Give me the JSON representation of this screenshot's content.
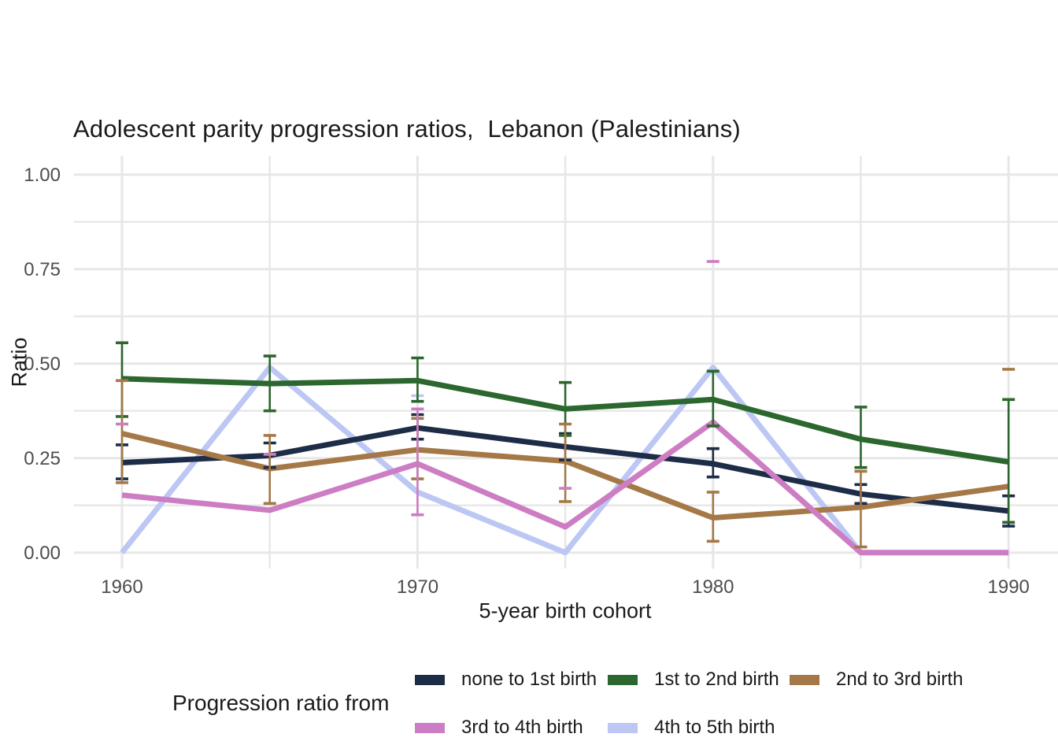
{
  "title": "Adolescent parity progression ratios,  Lebanon (Palestinians)",
  "chart_data": {
    "type": "line",
    "title": "Adolescent parity progression ratios,  Lebanon (Palestinians)",
    "xlabel": "5-year birth cohort",
    "ylabel": "Ratio",
    "x": [
      1960,
      1965,
      1970,
      1975,
      1980,
      1985,
      1990
    ],
    "x_ticks_major": [
      1960,
      1970,
      1980,
      1990
    ],
    "x_tick_labels": [
      "1960",
      "1970",
      "1980",
      "1990"
    ],
    "x_ticks_minor": [
      1965,
      1975,
      1985
    ],
    "ylim": [
      0,
      1
    ],
    "y_ticks_major": [
      0,
      0.25,
      0.5,
      0.75,
      1
    ],
    "y_tick_labels": [
      "0.00",
      "0.25",
      "0.50",
      "0.75",
      "1.00"
    ],
    "y_ticks_minor": [
      0.125,
      0.375,
      0.625,
      0.875
    ],
    "grid": true,
    "legend_position": "bottom",
    "error_bars": true,
    "series": [
      {
        "name": "none to 1st birth",
        "color": "#1d2c47",
        "values": [
          0.238,
          0.257,
          0.33,
          0.28,
          0.235,
          0.155,
          0.11
        ],
        "ci_low": [
          0.195,
          0.225,
          0.3,
          0.245,
          0.2,
          0.13,
          0.07
        ],
        "ci_high": [
          0.285,
          0.29,
          0.365,
          0.315,
          0.275,
          0.18,
          0.15
        ]
      },
      {
        "name": "1st to 2nd birth",
        "color": "#2c672f",
        "values": [
          0.46,
          0.447,
          0.455,
          0.38,
          0.405,
          0.3,
          0.24
        ],
        "ci_low": [
          0.36,
          0.375,
          0.4,
          0.31,
          0.335,
          0.225,
          0.08
        ],
        "ci_high": [
          0.555,
          0.52,
          0.515,
          0.45,
          0.48,
          0.385,
          0.405
        ]
      },
      {
        "name": "2nd to 3rd birth",
        "color": "#a57947",
        "values": [
          0.315,
          0.222,
          0.272,
          0.242,
          0.092,
          0.12,
          0.175
        ],
        "ci_low": [
          0.185,
          0.13,
          0.195,
          0.135,
          0.03,
          0.015,
          null
        ],
        "ci_high": [
          0.455,
          0.31,
          0.355,
          0.34,
          0.16,
          0.215,
          0.485
        ]
      },
      {
        "name": "3rd to 4th birth",
        "color": "#cd7dc3",
        "values": [
          0.152,
          0.112,
          0.235,
          0.068,
          0.345,
          0.0,
          0.0
        ],
        "ci_low": [
          null,
          null,
          0.1,
          null,
          null,
          null,
          null
        ],
        "ci_high": [
          0.34,
          0.26,
          0.38,
          0.17,
          0.77,
          null,
          null
        ]
      },
      {
        "name": "4th to 5th birth",
        "color": "#bcc7f4",
        "values": [
          0.0,
          0.49,
          0.16,
          0.0,
          0.49,
          0.0,
          0.0
        ],
        "ci_low": [
          null,
          null,
          null,
          null,
          null,
          null,
          null
        ],
        "ci_high": [
          null,
          null,
          0.415,
          null,
          null,
          null,
          null
        ]
      }
    ]
  },
  "legend": {
    "title": "Progression ratio from",
    "items": [
      {
        "label": "none to 1st birth",
        "color": "#1d2c47"
      },
      {
        "label": "1st to 2nd birth",
        "color": "#2c672f"
      },
      {
        "label": "2nd to 3rd birth",
        "color": "#a57947"
      },
      {
        "label": "3rd to 4th birth",
        "color": "#cd7dc3"
      },
      {
        "label": "4th to 5th birth",
        "color": "#bcc7f4"
      }
    ]
  },
  "style": {
    "grid_color": "#e7e7e7",
    "tick_label_color": "#4d4d4d",
    "text_color": "#1a1a1a",
    "background": "#ffffff"
  }
}
